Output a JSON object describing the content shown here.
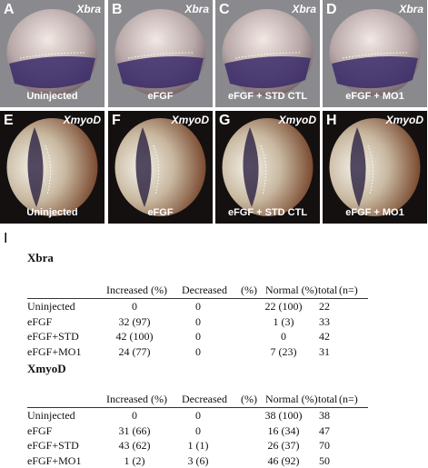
{
  "panels": [
    {
      "letter": "A",
      "gene": "Xbra",
      "label": "Uninjected"
    },
    {
      "letter": "B",
      "gene": "Xbra",
      "label": "eFGF"
    },
    {
      "letter": "C",
      "gene": "Xbra",
      "label": "eFGF + STD CTL"
    },
    {
      "letter": "D",
      "gene": "Xbra",
      "label": "eFGF + MO1"
    },
    {
      "letter": "E",
      "gene": "XmyoD",
      "label": "Uninjected"
    },
    {
      "letter": "F",
      "gene": "XmyoD",
      "label": "eFGF"
    },
    {
      "letter": "G",
      "gene": "XmyoD",
      "label": "eFGF + STD CTL"
    },
    {
      "letter": "H",
      "gene": "XmyoD",
      "label": "eFGF + MO1"
    }
  ],
  "section_letter": "I",
  "tables": [
    {
      "title": "Xbra",
      "header": [
        "Increased (%)",
        "Decreased",
        "(%)",
        "Normal (%)",
        "total",
        "(n=)"
      ],
      "rows": [
        [
          "Uninjected",
          "0",
          "0",
          "22 (100)",
          "22"
        ],
        [
          "eFGF",
          "32 (97)",
          "0",
          "1 (3)",
          "33"
        ],
        [
          "eFGF+STD",
          "42 (100)",
          "0",
          "0",
          "42"
        ],
        [
          "eFGF+MO1",
          "24 (77)",
          "0",
          "7 (23)",
          "31"
        ]
      ]
    },
    {
      "title": "XmyoD",
      "header": [
        "Increased (%)",
        "Decreased",
        "(%)",
        "Normal (%)",
        "total",
        "(n=)"
      ],
      "rows": [
        [
          "Uninjected",
          "0",
          "0",
          "38 (100)",
          "38"
        ],
        [
          "eFGF",
          "31 (66)",
          "0",
          "16 (34)",
          "47"
        ],
        [
          "eFGF+STD",
          "43 (62)",
          "1 (1)",
          "26 (37)",
          "70"
        ],
        [
          "eFGF+MO1",
          "1 (2)",
          "3 (6)",
          "46 (92)",
          "50"
        ]
      ]
    }
  ]
}
